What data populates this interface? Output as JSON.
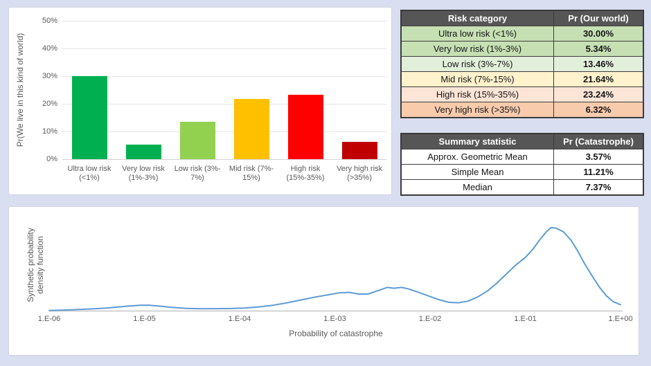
{
  "page": {
    "background_color": "#D9DEF0",
    "panel_color": "#FFFFFF"
  },
  "chart_data": [
    {
      "type": "bar",
      "title": "",
      "ylabel": "Pr(We live in this kind of world)",
      "xlabel": "",
      "ylim": [
        0,
        50
      ],
      "y_ticks": [
        "0%",
        "10%",
        "20%",
        "30%",
        "40%",
        "50%"
      ],
      "grid": true,
      "categories": [
        "Ultra low risk (<1%)",
        "Very low risk (1%-3%)",
        "Low risk (3%-7%)",
        "Mid risk (7%-15%)",
        "High risk (15%-35%)",
        "Very high risk (>35%)"
      ],
      "tick_lines": [
        [
          "Ultra low risk",
          "(<1%)"
        ],
        [
          "Very low risk",
          "(1%-3%)"
        ],
        [
          "Low risk (3%-",
          "7%)"
        ],
        [
          "Mid risk (7%-",
          "15%)"
        ],
        [
          "High risk",
          "(15%-35%)"
        ],
        [
          "Very high risk",
          "(>35%)"
        ]
      ],
      "values": [
        30.0,
        5.34,
        13.46,
        21.64,
        23.24,
        6.32
      ],
      "colors": [
        "#00B050",
        "#00B050",
        "#92D050",
        "#FFC000",
        "#FF0000",
        "#C00000"
      ]
    },
    {
      "type": "line",
      "title": "",
      "xlabel": "Probability of catastrophe",
      "ylabel": "Synthetic probability density function",
      "ylabel_lines": [
        "Synthetic probability",
        "density function"
      ],
      "x_scale": "log",
      "x_ticks": [
        "1.E-06",
        "1.E-05",
        "1.E-04",
        "1.E-03",
        "1.E-02",
        "1.E-01",
        "1.E+00"
      ],
      "xlim_log10": [
        -6,
        0
      ],
      "line_color": "#5B9BD5",
      "grid": false,
      "points_log10x_vs_relative_density": [
        [
          -6.0,
          0.002
        ],
        [
          -5.8,
          0.008
        ],
        [
          -5.6,
          0.018
        ],
        [
          -5.4,
          0.032
        ],
        [
          -5.2,
          0.052
        ],
        [
          -5.05,
          0.064
        ],
        [
          -4.95,
          0.066
        ],
        [
          -4.85,
          0.055
        ],
        [
          -4.7,
          0.038
        ],
        [
          -4.55,
          0.027
        ],
        [
          -4.4,
          0.023
        ],
        [
          -4.25,
          0.024
        ],
        [
          -4.1,
          0.026
        ],
        [
          -3.95,
          0.032
        ],
        [
          -3.8,
          0.045
        ],
        [
          -3.65,
          0.065
        ],
        [
          -3.5,
          0.095
        ],
        [
          -3.35,
          0.13
        ],
        [
          -3.2,
          0.165
        ],
        [
          -3.05,
          0.195
        ],
        [
          -2.95,
          0.215
        ],
        [
          -2.85,
          0.22
        ],
        [
          -2.75,
          0.2
        ],
        [
          -2.65,
          0.2
        ],
        [
          -2.55,
          0.24
        ],
        [
          -2.45,
          0.28
        ],
        [
          -2.38,
          0.27
        ],
        [
          -2.3,
          0.28
        ],
        [
          -2.22,
          0.26
        ],
        [
          -2.12,
          0.22
        ],
        [
          -2.0,
          0.17
        ],
        [
          -1.9,
          0.13
        ],
        [
          -1.8,
          0.1
        ],
        [
          -1.7,
          0.095
        ],
        [
          -1.6,
          0.115
        ],
        [
          -1.5,
          0.165
        ],
        [
          -1.4,
          0.235
        ],
        [
          -1.3,
          0.33
        ],
        [
          -1.2,
          0.44
        ],
        [
          -1.1,
          0.55
        ],
        [
          -1.0,
          0.64
        ],
        [
          -0.92,
          0.74
        ],
        [
          -0.85,
          0.85
        ],
        [
          -0.78,
          0.95
        ],
        [
          -0.73,
          1.0
        ],
        [
          -0.68,
          0.995
        ],
        [
          -0.6,
          0.95
        ],
        [
          -0.52,
          0.85
        ],
        [
          -0.45,
          0.72
        ],
        [
          -0.38,
          0.57
        ],
        [
          -0.3,
          0.42
        ],
        [
          -0.22,
          0.28
        ],
        [
          -0.15,
          0.18
        ],
        [
          -0.08,
          0.11
        ],
        [
          0.0,
          0.072
        ]
      ]
    }
  ],
  "tables": {
    "risk": {
      "header": [
        "Risk category",
        "Pr (Our world)"
      ],
      "rows": [
        {
          "label": "Ultra low risk (<1%)",
          "value": "30.00%",
          "bg": "#C6E0B4"
        },
        {
          "label": "Very low risk (1%-3%)",
          "value": "5.34%",
          "bg": "#C6E0B4"
        },
        {
          "label": "Low risk (3%-7%)",
          "value": "13.46%",
          "bg": "#E2EFDA"
        },
        {
          "label": "Mid risk (7%-15%)",
          "value": "21.64%",
          "bg": "#FFF2CC"
        },
        {
          "label": "High risk (15%-35%)",
          "value": "23.24%",
          "bg": "#FCE4D6"
        },
        {
          "label": "Very high risk (>35%)",
          "value": "6.32%",
          "bg": "#F8CBAD"
        }
      ]
    },
    "summary": {
      "header": [
        "Summary statistic",
        "Pr (Catastrophe)"
      ],
      "rows": [
        {
          "label": "Approx. Geometric Mean",
          "value": "3.57%",
          "bg": "#FFFFFF"
        },
        {
          "label": "Simple Mean",
          "value": "11.21%",
          "bg": "#FFFFFF"
        },
        {
          "label": "Median",
          "value": "7.37%",
          "bg": "#FFFFFF"
        }
      ]
    }
  }
}
